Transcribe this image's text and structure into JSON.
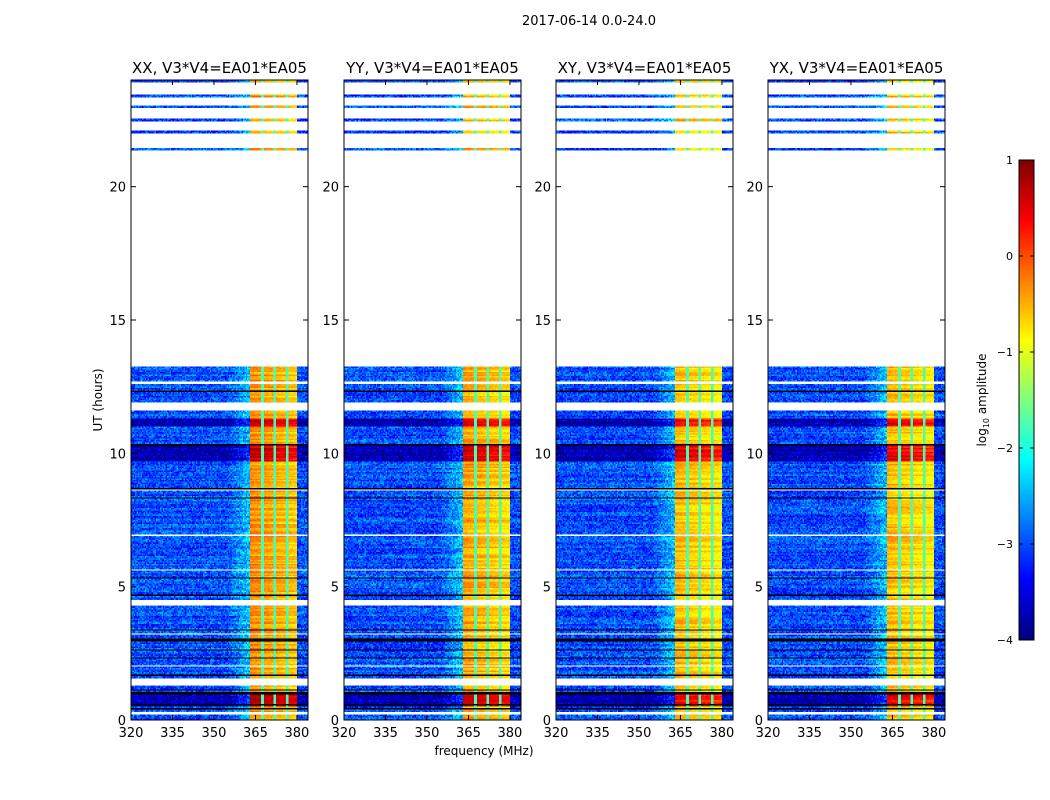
{
  "suptitle": "2017-06-14 0.0-24.0",
  "chart_data": {
    "type": "heatmap",
    "title": "2017-06-14 0.0-24.0",
    "xlabel": "frequency (MHz)",
    "ylabel": "UT (hours)",
    "xlim": [
      320,
      384
    ],
    "ylim": [
      0,
      24
    ],
    "xticks": [
      320,
      335,
      350,
      365,
      380
    ],
    "yticks": [
      0,
      5,
      10,
      15,
      20
    ],
    "panels": [
      {
        "title": "XX, V3*V4=EA01*EA05",
        "band_level": -0.3
      },
      {
        "title": "YY, V3*V4=EA01*EA05",
        "band_level": -0.4
      },
      {
        "title": "XY, V3*V4=EA01*EA05",
        "band_level": -0.5
      },
      {
        "title": "YX, V3*V4=EA01*EA05",
        "band_level": -0.5
      }
    ],
    "bright_band_mhz": [
      363,
      380
    ],
    "subband_edges_mhz": [
      367.5,
      372,
      376.5
    ],
    "background_level": -3.0,
    "flagged_ut_ranges": [
      [
        13.25,
        21.35
      ],
      [
        21.45,
        22.0
      ],
      [
        22.1,
        22.45
      ],
      [
        22.55,
        22.95
      ],
      [
        23.05,
        23.35
      ],
      [
        23.45,
        23.9
      ],
      [
        11.6,
        11.9
      ],
      [
        4.3,
        4.5
      ],
      [
        1.3,
        1.55
      ],
      [
        0.2,
        0.3
      ],
      [
        12.6,
        12.7
      ],
      [
        8.6,
        8.65
      ],
      [
        6.9,
        6.95
      ],
      [
        5.6,
        5.65
      ],
      [
        3.2,
        3.25
      ],
      [
        2.0,
        2.05
      ]
    ],
    "black_ut_lines": [
      0.45,
      0.55,
      1.0,
      1.15,
      1.7,
      2.3,
      2.6,
      3.0,
      3.4,
      4.7,
      4.85,
      5.3,
      6.1,
      6.6,
      8.3,
      8.7,
      9.5,
      10.0,
      10.3,
      10.9,
      11.4,
      12.0,
      12.3,
      12.9
    ],
    "dark_ut_ranges": [
      [
        9.7,
        10.3
      ],
      [
        0.5,
        1.0
      ],
      [
        11.0,
        11.3
      ]
    ],
    "colorbar": {
      "label": "log10 amplitude",
      "label_main": "log",
      "label_sub": "10",
      "label_rest": " amplitude",
      "range": [
        -4,
        1
      ],
      "ticks": [
        1,
        0,
        -1,
        -2,
        -3,
        -4
      ],
      "tick_labels": [
        "1",
        "0",
        "−1",
        "−2",
        "−3",
        "−4"
      ],
      "colormap": "jet"
    }
  }
}
